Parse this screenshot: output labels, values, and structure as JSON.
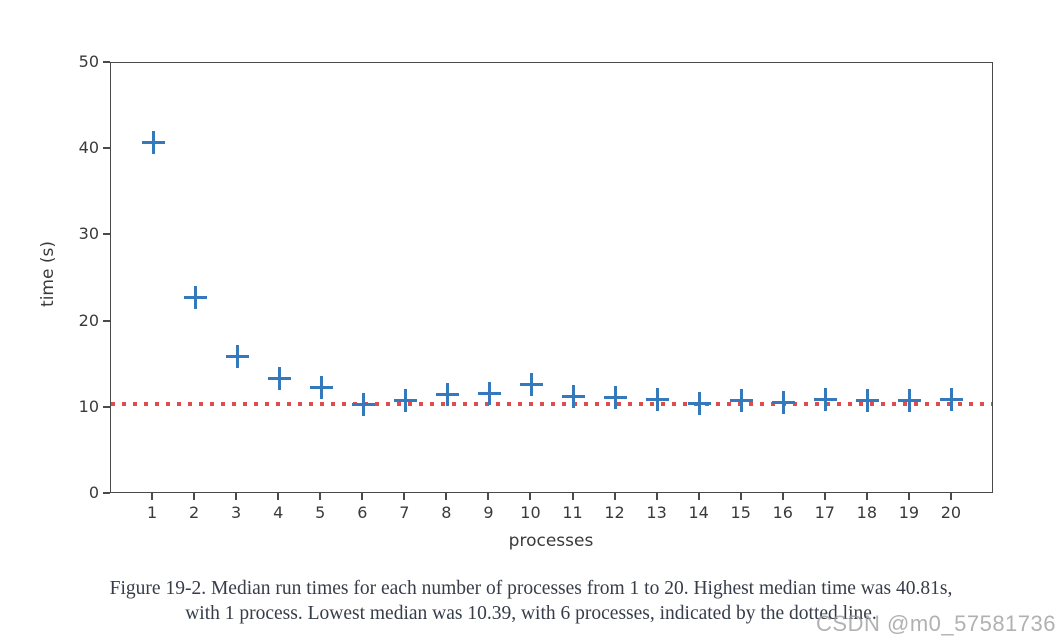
{
  "figure": {
    "caption_line1": "Figure 19-2. Median run times for each number of processes from 1 to 20. Highest median time was 40.81s,",
    "caption_line2": "with 1 process. Lowest median was 10.39, with 6 processes, indicated by the dotted line.",
    "watermark": "CSDN @m0_57581736"
  },
  "chart_data": {
    "type": "scatter",
    "title": "",
    "xlabel": "processes",
    "ylabel": "time (s)",
    "marker": "plus",
    "marker_color": "#3579bd",
    "x": [
      1,
      2,
      3,
      4,
      5,
      6,
      7,
      8,
      9,
      10,
      11,
      12,
      13,
      14,
      15,
      16,
      17,
      18,
      19,
      20
    ],
    "y": [
      40.81,
      22.8,
      15.9,
      13.4,
      12.4,
      10.39,
      10.9,
      11.5,
      11.7,
      12.7,
      11.3,
      11.2,
      11.0,
      10.5,
      10.9,
      10.6,
      11.0,
      10.9,
      10.9,
      11.0
    ],
    "x_ticks": [
      1,
      2,
      3,
      4,
      5,
      6,
      7,
      8,
      9,
      10,
      11,
      12,
      13,
      14,
      15,
      16,
      17,
      18,
      19,
      20
    ],
    "y_ticks": [
      0,
      10,
      20,
      30,
      40,
      50
    ],
    "xlim": [
      0,
      21
    ],
    "ylim": [
      0,
      50
    ],
    "grid": false,
    "legend": null,
    "reference_line": {
      "value": 10.39,
      "orientation": "horizontal",
      "style": "dotted",
      "color": "#e14b4b",
      "meaning": "lowest median (10.39s at 6 processes)"
    },
    "highest_point": {
      "x": 1,
      "y": 40.81
    },
    "lowest_point": {
      "x": 6,
      "y": 10.39
    }
  }
}
